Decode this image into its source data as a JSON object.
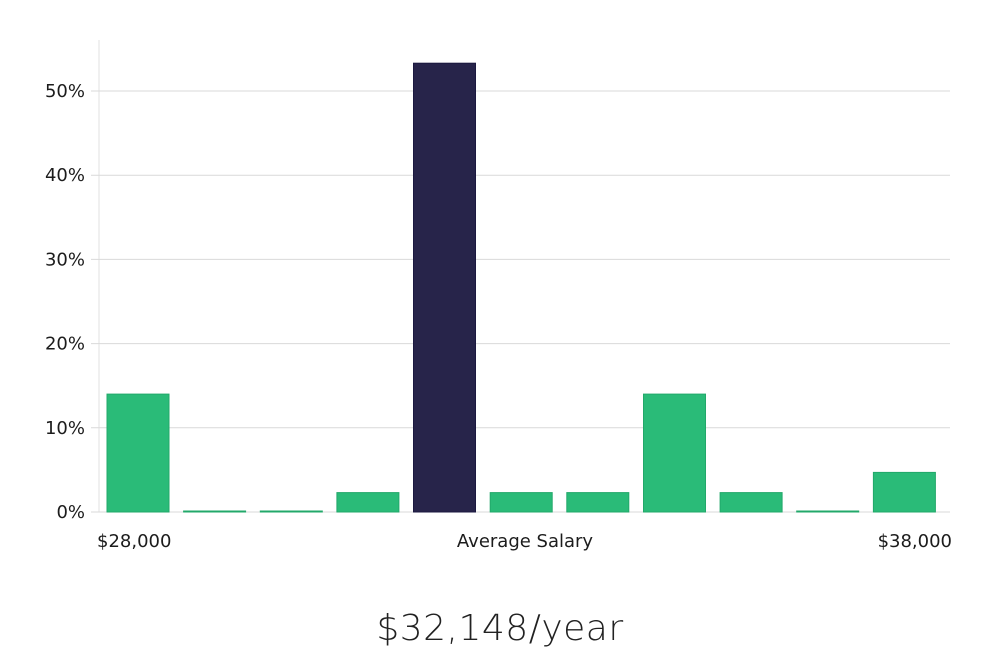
{
  "chart_data": {
    "type": "bar",
    "title": "",
    "xlabel": "",
    "ylabel": "",
    "ylim": [
      0,
      56
    ],
    "y_ticks": [
      {
        "value": 0,
        "label": "0%"
      },
      {
        "value": 10,
        "label": "10%"
      },
      {
        "value": 20,
        "label": "20%"
      },
      {
        "value": 30,
        "label": "30%"
      },
      {
        "value": 40,
        "label": "40%"
      },
      {
        "value": 50,
        "label": "50%"
      }
    ],
    "x_labels": {
      "left": "$28,000",
      "center": "Average Salary",
      "right": "$38,000"
    },
    "values": [
      14.0,
      0.1,
      0.1,
      2.3,
      53.3,
      2.3,
      2.3,
      14.0,
      2.3,
      0.1,
      4.7
    ],
    "highlight_index": 4,
    "colors": {
      "bar": "#2abb78",
      "highlight": "#27244a",
      "grid": "#d9d9d9",
      "axis": "#e2e2e2"
    },
    "grid": true
  },
  "caption": {
    "salary": "$32,148/year"
  }
}
